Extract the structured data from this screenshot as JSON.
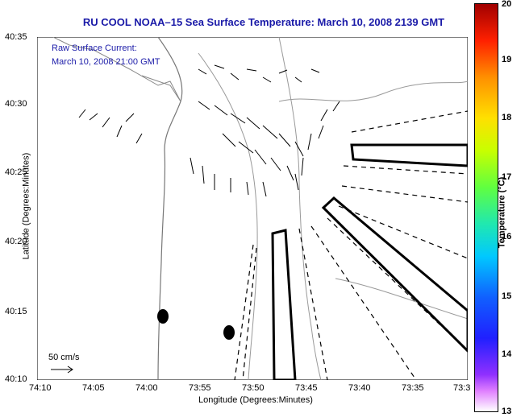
{
  "header": {
    "title": "RU COOL  NOAA–15  Sea Surface Temperature:  March 10, 2008 2139 GMT"
  },
  "legend": {
    "line1": "Raw Surface Current:",
    "line2": "March 10, 2008 21:00 GMT"
  },
  "axes": {
    "xlabel": "Longitude (Degrees:Minutes)",
    "ylabel": "Latitude (Degrees:Minutes)",
    "x_ticks": [
      "74:10",
      "74:05",
      "74:00",
      "73:55",
      "73:50",
      "73:45",
      "73:40",
      "73:35",
      "73:3"
    ],
    "y_ticks": [
      "40:35",
      "40:30",
      "40:25",
      "40:20",
      "40:15",
      "40:10"
    ]
  },
  "scale": {
    "label": "50 cm/s"
  },
  "colorbar": {
    "label": "Temperature (°C)",
    "ticks": [
      "20",
      "19",
      "18",
      "17",
      "16",
      "15",
      "14",
      "13"
    ]
  }
}
